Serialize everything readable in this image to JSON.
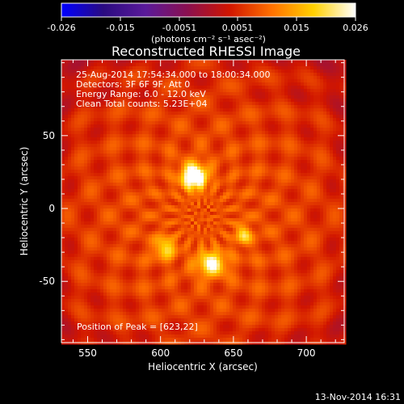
{
  "chart_data": {
    "type": "heatmap",
    "title": "Reconstructed RHESSI Image",
    "xlabel": "Heliocentric X (arcsec)",
    "ylabel": "Heliocentric Y (arcsec)",
    "xlim": [
      532,
      726
    ],
    "ylim": [
      -92,
      102
    ],
    "x_ticks": [
      550,
      600,
      650,
      700
    ],
    "y_ticks": [
      -50,
      0,
      50
    ],
    "colorbar": {
      "range": [
        -0.026,
        0.026
      ],
      "ticks": [
        "-0.026",
        "-0.015",
        "-0.0051",
        "0.0051",
        "0.015",
        "0.026"
      ],
      "unit_label": "(photons cm⁻² s⁻¹ asec⁻²)",
      "colors": [
        "#0000ff",
        "#2a0b80",
        "#5a1a9a",
        "#8a1050",
        "#d01500",
        "#ff7000",
        "#ffd000",
        "#ffffff"
      ]
    },
    "sources": [
      {
        "x": 623,
        "y": 22,
        "peak": 0.026,
        "sigma_x": 6,
        "sigma_y": 6
      },
      {
        "x": 635,
        "y": -38,
        "peak": 0.0175,
        "sigma_x": 7,
        "sigma_y": 6
      },
      {
        "x": 603,
        "y": -27,
        "peak": 0.0135,
        "sigma_x": 5,
        "sigma_y": 5
      },
      {
        "x": 657,
        "y": -18,
        "peak": 0.0115,
        "sigma_x": 4,
        "sigma_y": 5
      }
    ],
    "background_level": 0.0085,
    "annotations": [
      "25-Aug-2014 17:54:34.000 to 18:00:34.000",
      "Detectors: 3F 6F 9F, Att 0",
      "Energy Range: 6.0 - 12.0 keV",
      "Clean    Total counts: 5.23E+04"
    ],
    "peak_label": "Position of Peak = [623,22]",
    "footer": "13-Nov-2014 16:31"
  }
}
